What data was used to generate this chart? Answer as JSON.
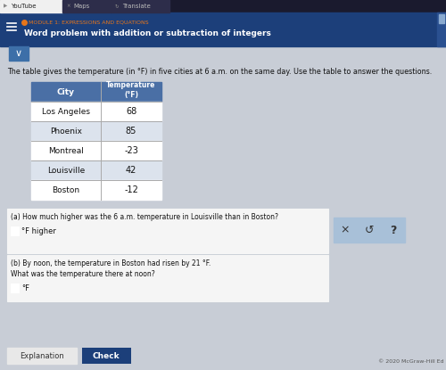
{
  "browser_tabs": [
    "YouTube",
    "Maps",
    "Translate"
  ],
  "header_module": "MODULE 1: EXPRESSIONS AND EQUATIONS",
  "header_title": "Word problem with addition or subtraction of integers",
  "intro_text": "The table gives the temperature (in °F) in five cities at 6 a.m. on the same day. Use the table to answer the questions.",
  "table_headers": [
    "City",
    "Temperature\n(°F)"
  ],
  "table_data": [
    [
      "Los Angeles",
      "68"
    ],
    [
      "Phoenix",
      "85"
    ],
    [
      "Montreal",
      "-23"
    ],
    [
      "Louisville",
      "42"
    ],
    [
      "Boston",
      "-12"
    ]
  ],
  "question_a": "(a) How much higher was the 6 a.m. temperature in Louisville than in Boston?",
  "answer_a_suffix": "°F higher",
  "question_b_line1": "(b) By noon, the temperature in Boston had risen by 21 °F.",
  "question_b_line2": "What was the temperature there at noon?",
  "answer_b_suffix": "°F",
  "button1": "Explanation",
  "button2": "Check",
  "copyright": "© 2020 McGraw-Hill Ed",
  "bg_color": "#c8cdd6",
  "header_bg": "#1c3f7a",
  "header_orange": "#e8761a",
  "table_header_bg": "#4a6fa5",
  "table_border": "#aaaaaa",
  "question_box_bg": "#f5f5f5",
  "question_box_border": "#bbbbbb",
  "button_check_bg": "#1c3f7a",
  "hint_box_bg": "#a8c0d8",
  "tab_bar_bg": "#1a1a2e",
  "tab_active_bg": "#f0f0f0",
  "tab_inactive_bg": "#2d2d4a"
}
